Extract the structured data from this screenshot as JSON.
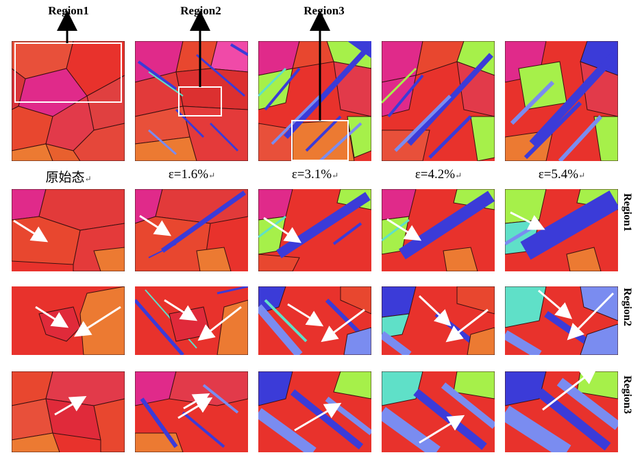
{
  "top_labels": [
    "Region1",
    "Region2",
    "Region3"
  ],
  "strain_labels": [
    "原始态",
    "ε=1.6%",
    "ε=3.1%",
    "ε=4.2%",
    "ε=5.4%"
  ],
  "return_mark": "↵",
  "side_labels": [
    "Region1",
    "Region2",
    "Region3"
  ],
  "colors": {
    "red": "#e8322c",
    "magenta": "#e02a8a",
    "orange": "#ec7a32",
    "blue": "#3b3bd8",
    "green": "#a6f04a",
    "cyan": "#5fe0c8",
    "lightblue": "#7a8cf0",
    "pink": "#f04aa8",
    "darkred": "#c8202a",
    "boundary": "#3a1010",
    "arrow": "#ffffff",
    "frame": "#ffffff"
  }
}
